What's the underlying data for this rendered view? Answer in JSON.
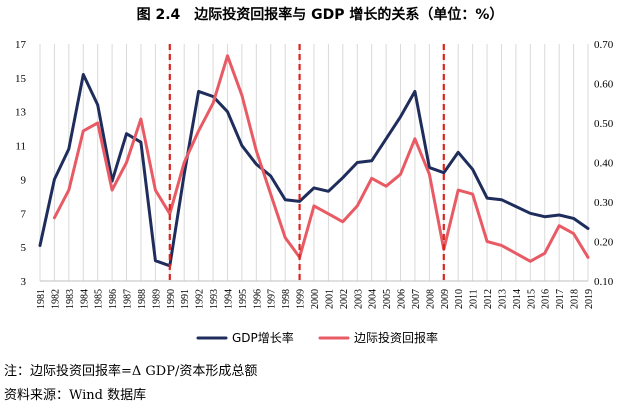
{
  "chart_data": {
    "type": "line",
    "title": "图 2.4　边际投资回报率与 GDP 增长的关系（单位：%）",
    "x": [
      "1981",
      "1982",
      "1983",
      "1984",
      "1985",
      "1986",
      "1987",
      "1988",
      "1989",
      "1990",
      "1991",
      "1992",
      "1993",
      "1994",
      "1995",
      "1996",
      "1997",
      "1998",
      "1999",
      "2000",
      "2001",
      "2002",
      "2003",
      "2004",
      "2005",
      "2006",
      "2007",
      "2008",
      "2009",
      "2010",
      "2011",
      "2012",
      "2013",
      "2014",
      "2015",
      "2016",
      "2017",
      "2018",
      "2019"
    ],
    "y_left_range": [
      3,
      17
    ],
    "y_left_ticks": [
      "3",
      "5",
      "7",
      "9",
      "11",
      "13",
      "15",
      "17"
    ],
    "y_right_range": [
      0.1,
      0.7
    ],
    "y_right_ticks": [
      "0.10",
      "0.20",
      "0.30",
      "0.40",
      "0.50",
      "0.60",
      "0.70"
    ],
    "series": [
      {
        "name": "GDP增长率",
        "axis": "left",
        "color": "#1f2d5c",
        "values": [
          5.1,
          9.0,
          10.8,
          15.2,
          13.4,
          8.9,
          11.7,
          11.2,
          4.2,
          3.9,
          9.3,
          14.2,
          13.9,
          13.0,
          11.0,
          9.9,
          9.2,
          7.8,
          7.7,
          8.5,
          8.3,
          9.1,
          10.0,
          10.1,
          11.4,
          12.7,
          14.2,
          9.7,
          9.4,
          10.6,
          9.6,
          7.9,
          7.8,
          7.4,
          7.0,
          6.8,
          6.9,
          6.7,
          6.1
        ]
      },
      {
        "name": "边际投资回报率",
        "axis": "right",
        "color": "#e85b65",
        "values": [
          null,
          0.26,
          0.33,
          0.48,
          0.5,
          0.33,
          0.4,
          0.51,
          0.33,
          0.27,
          0.4,
          0.48,
          0.55,
          0.67,
          0.57,
          0.43,
          0.32,
          0.21,
          0.16,
          0.29,
          0.27,
          0.25,
          0.29,
          0.36,
          0.34,
          0.37,
          0.46,
          0.37,
          0.18,
          0.33,
          0.32,
          0.2,
          0.19,
          0.17,
          0.15,
          0.17,
          0.24,
          0.22,
          0.16
        ]
      }
    ],
    "vlines": [
      "1990",
      "1999",
      "2009"
    ],
    "vline_color": "#d9251d",
    "legend_position": "bottom",
    "grid": "vertical"
  },
  "notes": {
    "note1": "注：边际投资回报率=Δ GDP/资本形成总额",
    "note2": "资料来源：Wind 数据库"
  }
}
